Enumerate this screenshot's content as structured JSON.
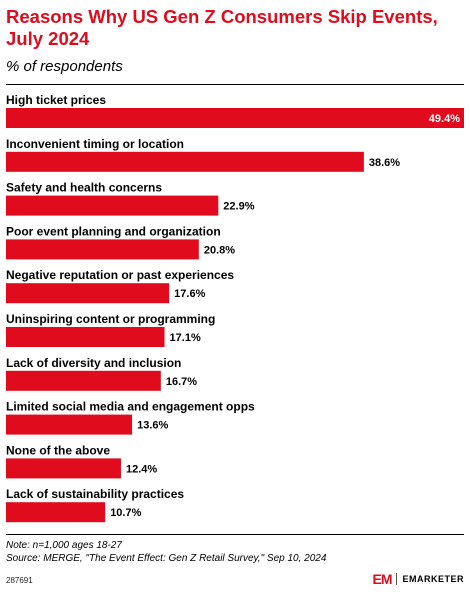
{
  "header": {
    "title": "Reasons Why US Gen Z Consumers Skip Events, July 2024",
    "subtitle": "% of respondents"
  },
  "chart_data": {
    "type": "bar",
    "orientation": "horizontal",
    "categories": [
      "High ticket prices",
      "Inconvenient timing or location",
      "Safety and health concerns",
      "Poor event planning and organization",
      "Negative reputation or past experiences",
      "Uninspiring content or programming",
      "Lack of diversity and inclusion",
      "Limited social media and engagement opps",
      "None of the above",
      "Lack of sustainability practices"
    ],
    "values": [
      49.4,
      38.6,
      22.9,
      20.8,
      17.6,
      17.1,
      16.7,
      13.6,
      12.4,
      10.7
    ],
    "value_labels": [
      "49.4%",
      "38.6%",
      "22.9%",
      "20.8%",
      "17.6%",
      "17.1%",
      "16.7%",
      "13.6%",
      "12.4%",
      "10.7%"
    ],
    "unit": "%",
    "xlim": [
      0,
      49.4
    ],
    "bar_color": "#e00b1c",
    "grid": false
  },
  "footer": {
    "note": "Note: n=1,000 ages 18-27",
    "source": "Source: MERGE, \"The Event Effect: Gen Z Retail Survey,\" Sep 10, 2024",
    "chart_id": "287691",
    "logo_mark": "EM",
    "brand_name": "EMARKETER"
  }
}
